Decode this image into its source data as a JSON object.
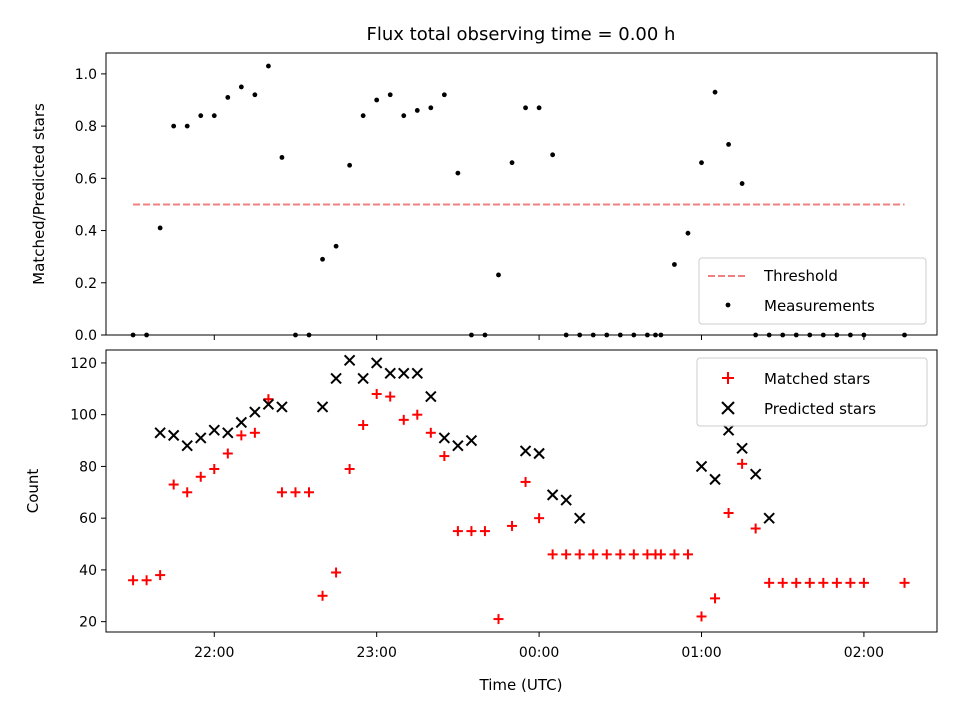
{
  "chart_data": [
    {
      "type": "scatter",
      "title": "Flux total observing time = 0.00 h",
      "xlabel": "",
      "ylabel": "Matched/Predicted stars",
      "ylim": [
        0,
        1.08
      ],
      "yticks": [
        "0.0",
        "0.2",
        "0.4",
        "0.6",
        "0.8",
        "1.0"
      ],
      "xticks": [
        "22:00",
        "23:00",
        "00:00",
        "01:00",
        "02:00"
      ],
      "show_xtick_labels": false,
      "legend": {
        "placement": "bottom-right"
      },
      "threshold": {
        "name": "Threshold",
        "value": 0.5,
        "x_start": "21:30",
        "x_end": "02:15",
        "color": "#f08080",
        "style": "dashed"
      },
      "series": [
        {
          "name": "Measurements",
          "color": "#000000",
          "marker": "dot",
          "x": [
            "21:30",
            "21:35",
            "21:40",
            "21:45",
            "21:50",
            "21:55",
            "22:00",
            "22:05",
            "22:10",
            "22:15",
            "22:20",
            "22:25",
            "22:30",
            "22:35",
            "22:40",
            "22:45",
            "22:50",
            "22:55",
            "23:00",
            "23:05",
            "23:10",
            "23:15",
            "23:20",
            "23:25",
            "23:30",
            "23:35",
            "23:40",
            "23:45",
            "23:50",
            "23:55",
            "00:00",
            "00:05",
            "00:10",
            "00:15",
            "00:20",
            "00:25",
            "00:30",
            "00:35",
            "00:40",
            "00:43",
            "00:45",
            "00:50",
            "00:55",
            "01:00",
            "01:05",
            "01:10",
            "01:15",
            "01:20",
            "01:25",
            "01:30",
            "01:35",
            "01:40",
            "01:45",
            "01:50",
            "01:55",
            "02:00",
            "02:15"
          ],
          "y": [
            0.0,
            0.0,
            0.41,
            0.8,
            0.8,
            0.84,
            0.84,
            0.91,
            0.95,
            0.92,
            1.03,
            0.68,
            0.0,
            0.0,
            0.29,
            0.34,
            0.65,
            0.84,
            0.9,
            0.92,
            0.84,
            0.86,
            0.87,
            0.92,
            0.62,
            0.0,
            0.0,
            0.23,
            0.66,
            0.87,
            0.87,
            0.69,
            0.0,
            0.0,
            0.0,
            0.0,
            0.0,
            0.0,
            0.0,
            0.0,
            0.0,
            0.27,
            0.39,
            0.66,
            0.93,
            0.73,
            0.58,
            0.0,
            0.0,
            0.0,
            0.0,
            0.0,
            0.0,
            0.0,
            0.0,
            0.0,
            0.0
          ]
        }
      ]
    },
    {
      "type": "scatter",
      "title": "",
      "xlabel": "Time (UTC)",
      "ylabel": "Count",
      "ylim": [
        16,
        125
      ],
      "yticks": [
        "20",
        "40",
        "60",
        "80",
        "100",
        "120"
      ],
      "xticks": [
        "22:00",
        "23:00",
        "00:00",
        "01:00",
        "02:00"
      ],
      "show_xtick_labels": true,
      "legend": {
        "placement": "top-right"
      },
      "series": [
        {
          "name": "Matched stars",
          "color": "#ff0000",
          "marker": "plus",
          "x": [
            "21:30",
            "21:35",
            "21:40",
            "21:45",
            "21:50",
            "21:55",
            "22:00",
            "22:05",
            "22:10",
            "22:15",
            "22:20",
            "22:25",
            "22:30",
            "22:35",
            "22:40",
            "22:45",
            "22:50",
            "22:55",
            "23:00",
            "23:05",
            "23:10",
            "23:15",
            "23:20",
            "23:25",
            "23:30",
            "23:35",
            "23:40",
            "23:45",
            "23:50",
            "23:55",
            "00:00",
            "00:05",
            "00:10",
            "00:15",
            "00:20",
            "00:25",
            "00:30",
            "00:35",
            "00:40",
            "00:43",
            "00:45",
            "00:50",
            "00:55",
            "01:00",
            "01:05",
            "01:10",
            "01:15",
            "01:20",
            "01:25",
            "01:30",
            "01:35",
            "01:40",
            "01:45",
            "01:50",
            "01:55",
            "02:00",
            "02:15"
          ],
          "y": [
            36,
            36,
            38,
            73,
            70,
            76,
            79,
            85,
            92,
            93,
            106,
            70,
            70,
            70,
            30,
            39,
            79,
            96,
            108,
            107,
            98,
            100,
            93,
            84,
            55,
            55,
            55,
            21,
            57,
            74,
            60,
            46,
            46,
            46,
            46,
            46,
            46,
            46,
            46,
            46,
            46,
            46,
            46,
            22,
            29,
            62,
            81,
            56,
            35,
            35,
            35,
            35,
            35,
            35,
            35,
            35,
            35
          ]
        },
        {
          "name": "Predicted stars",
          "color": "#000000",
          "marker": "x",
          "x": [
            "21:40",
            "21:45",
            "21:50",
            "21:55",
            "22:00",
            "22:05",
            "22:10",
            "22:15",
            "22:20",
            "22:25",
            "22:40",
            "22:45",
            "22:50",
            "22:55",
            "23:00",
            "23:05",
            "23:10",
            "23:15",
            "23:20",
            "23:25",
            "23:30",
            "23:35",
            "23:55",
            "00:00",
            "00:05",
            "00:10",
            "00:15",
            "01:00",
            "01:05",
            "01:10",
            "01:15",
            "01:20",
            "01:25"
          ],
          "y": [
            93,
            92,
            88,
            91,
            94,
            93,
            97,
            101,
            104,
            103,
            103,
            114,
            121,
            114,
            120,
            116,
            116,
            116,
            107,
            91,
            88,
            90,
            86,
            85,
            69,
            67,
            60,
            80,
            75,
            94,
            87,
            77,
            60
          ]
        }
      ]
    }
  ]
}
